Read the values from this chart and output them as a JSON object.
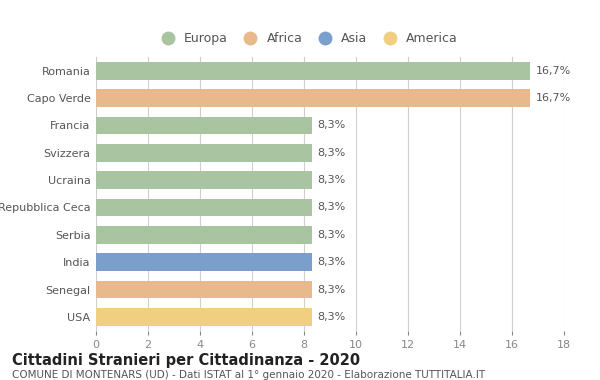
{
  "categories": [
    "Romania",
    "Capo Verde",
    "Francia",
    "Svizzera",
    "Ucraina",
    "Repubblica Ceca",
    "Serbia",
    "India",
    "Senegal",
    "USA"
  ],
  "values": [
    16.7,
    16.7,
    8.3,
    8.3,
    8.3,
    8.3,
    8.3,
    8.3,
    8.3,
    8.3
  ],
  "bar_colors": [
    "#a8c4a0",
    "#e8b98a",
    "#a8c4a0",
    "#a8c4a0",
    "#a8c4a0",
    "#a8c4a0",
    "#a8c4a0",
    "#7a9fcc",
    "#e8b98a",
    "#f0d080"
  ],
  "labels": [
    "16,7%",
    "16,7%",
    "8,3%",
    "8,3%",
    "8,3%",
    "8,3%",
    "8,3%",
    "8,3%",
    "8,3%",
    "8,3%"
  ],
  "legend_labels": [
    "Europa",
    "Africa",
    "Asia",
    "America"
  ],
  "legend_colors": [
    "#a8c4a0",
    "#e8b98a",
    "#7a9fcc",
    "#f0d080"
  ],
  "title": "Cittadini Stranieri per Cittadinanza - 2020",
  "subtitle": "COMUNE DI MONTENARS (UD) - Dati ISTAT al 1° gennaio 2020 - Elaborazione TUTTITALIA.IT",
  "xlim": [
    0,
    18
  ],
  "xticks": [
    0,
    2,
    4,
    6,
    8,
    10,
    12,
    14,
    16,
    18
  ],
  "background_color": "#ffffff",
  "grid_color": "#d0d0d0",
  "bar_height": 0.65,
  "label_fontsize": 8,
  "title_fontsize": 10.5,
  "subtitle_fontsize": 7.5,
  "tick_fontsize": 8,
  "legend_fontsize": 9,
  "text_color": "#555555",
  "title_color": "#222222"
}
